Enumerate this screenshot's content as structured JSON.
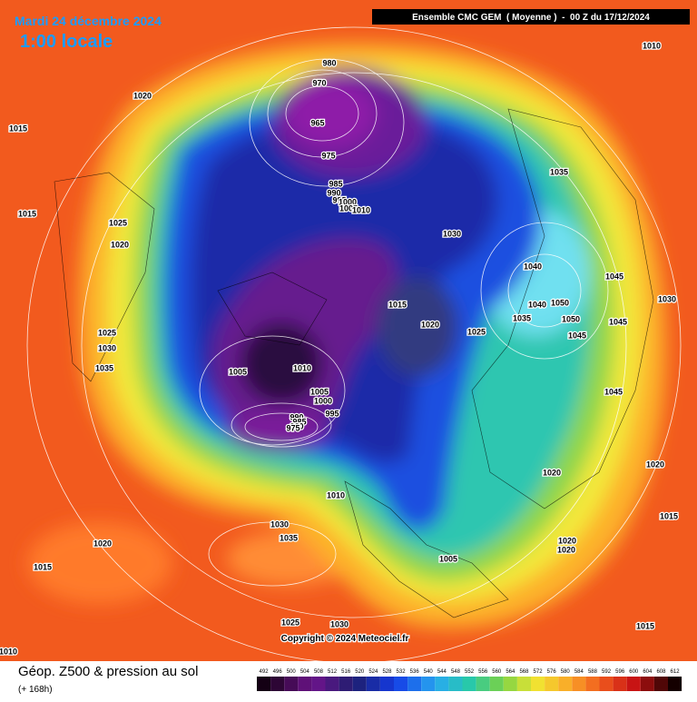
{
  "header": {
    "date": "Mardi 24 décembre 2024",
    "time": "1:00 locale",
    "model": "Ensemble CMC GEM  ( Moyenne )  -  00 Z du 17/12/2024"
  },
  "map": {
    "isobar_labels": [
      1010,
      1020,
      1015,
      980,
      970,
      965,
      975,
      985,
      990,
      995,
      1000,
      1005,
      1010,
      1030,
      1035,
      1015,
      1025,
      1020,
      1040,
      1045,
      1030,
      1040,
      1050,
      1035,
      1050,
      1045,
      1015,
      1020,
      1025,
      1045,
      1025,
      1030,
      1035,
      1005,
      1010,
      1005,
      1000,
      995,
      990,
      985,
      980,
      975,
      1045,
      1020,
      1020,
      1010,
      1030,
      1035,
      1020,
      1015,
      1015,
      1005,
      1020,
      1020,
      1025,
      1030,
      1015,
      1010
    ]
  },
  "copyright": "Copyright © 2024 Meteociel.fr",
  "footer": {
    "title": "Géop. Z500 & pression au sol",
    "lead": "(+ 168h)",
    "scale": [
      492,
      496,
      500,
      504,
      508,
      512,
      516,
      520,
      524,
      528,
      532,
      536,
      540,
      544,
      548,
      552,
      556,
      560,
      564,
      568,
      572,
      576,
      580,
      584,
      588,
      592,
      596,
      600,
      604,
      608,
      612
    ]
  }
}
